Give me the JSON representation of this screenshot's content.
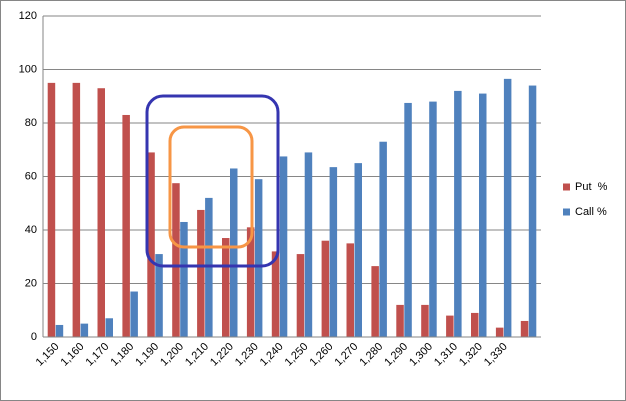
{
  "chart_data": {
    "type": "bar",
    "categories": [
      "1,150",
      "1,160",
      "1,170",
      "1,180",
      "1,190",
      "1,200",
      "1,210",
      "1,220",
      "1,230",
      "1,240",
      "1,250",
      "1,260",
      "1,270",
      "1,280",
      "1,290",
      "1,300",
      "1,310",
      "1,320",
      "1,330",
      null
    ],
    "series": [
      {
        "name": "Put  %",
        "color": "#c0504d",
        "values": [
          95,
          95,
          93,
          83,
          69,
          57.5,
          47.5,
          37,
          41,
          32,
          31,
          36,
          35,
          26.5,
          12,
          12,
          8,
          9,
          3.5,
          6
        ]
      },
      {
        "name": "Call %",
        "color": "#4f81bd",
        "values": [
          4.5,
          5,
          7,
          17,
          31,
          43,
          52,
          63,
          59,
          67.5,
          69,
          63.5,
          65,
          73,
          87.5,
          88,
          92,
          91,
          96.5,
          94
        ]
      }
    ],
    "ylim": [
      0,
      120
    ],
    "yticks": [
      0,
      20,
      40,
      60,
      80,
      100,
      120
    ],
    "grid": true,
    "legend": "right"
  }
}
